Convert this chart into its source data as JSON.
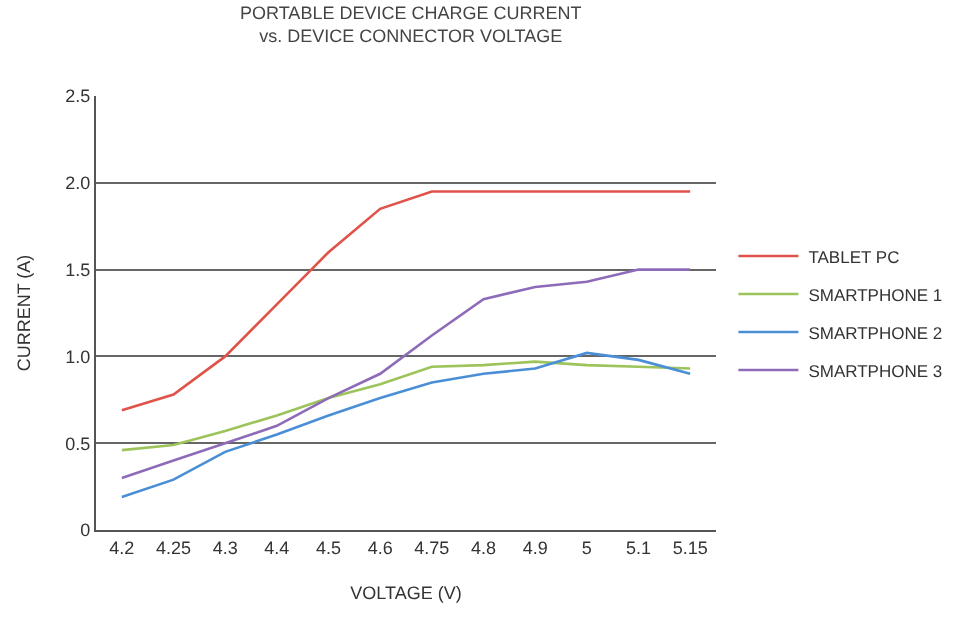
{
  "chart_data": {
    "type": "line",
    "title": "PORTABLE DEVICE CHARGE CURRENT\nvs. DEVICE CONNECTOR VOLTAGE",
    "xlabel": "VOLTAGE (V)",
    "ylabel": "CURRENT (A)",
    "categories": [
      "4.2",
      "4.25",
      "4.3",
      "4.4",
      "4.5",
      "4.6",
      "4.75",
      "4.8",
      "4.9",
      "5",
      "5.1",
      "5.15"
    ],
    "series": [
      {
        "name": "TABLET PC",
        "color": "#e0534a",
        "values": [
          0.69,
          0.78,
          1.0,
          1.3,
          1.6,
          1.85,
          1.95,
          1.95,
          1.95,
          1.95,
          1.95,
          1.95
        ]
      },
      {
        "name": "SMARTPHONE 1",
        "color": "#9cc45a",
        "values": [
          0.46,
          0.49,
          0.57,
          0.66,
          0.76,
          0.84,
          0.94,
          0.95,
          0.97,
          0.95,
          0.94,
          0.93
        ]
      },
      {
        "name": "SMARTPHONE 2",
        "color": "#4a8fd6",
        "values": [
          0.19,
          0.29,
          0.45,
          0.55,
          0.66,
          0.76,
          0.85,
          0.9,
          0.93,
          1.02,
          0.98,
          0.9
        ]
      },
      {
        "name": "SMARTPHONE 3",
        "color": "#8e6bb8",
        "values": [
          0.3,
          0.4,
          0.5,
          0.6,
          0.76,
          0.9,
          1.12,
          1.33,
          1.4,
          1.43,
          1.5,
          1.5
        ]
      }
    ],
    "ylim": [
      0,
      2.5
    ],
    "yticks": [
      0,
      0.5,
      {
        "value": 1,
        "label": "1.0"
      },
      1.5,
      {
        "value": 2,
        "label": "2.0"
      },
      2.5
    ],
    "grid": "y",
    "legend": "right",
    "marker": "none",
    "line_style": "solid"
  }
}
